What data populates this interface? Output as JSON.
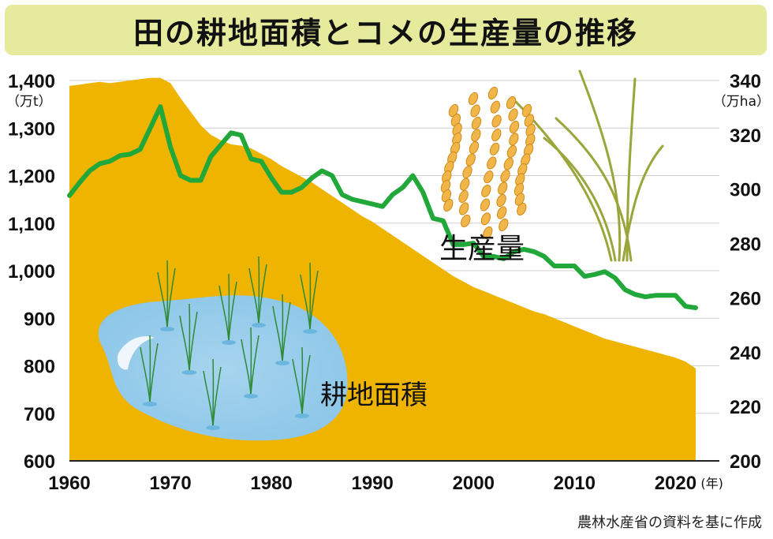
{
  "title": "田の耕地面積とコメの生産量の推移",
  "source": "農林水産省の資料を基に作成",
  "chart_data": {
    "type": "area+line",
    "title": "田の耕地面積とコメの生産量の推移",
    "left_axis": {
      "unit": "（万t）",
      "range": [
        600,
        1400
      ],
      "ticks": [
        "600",
        "700",
        "800",
        "900",
        "1,000",
        "1,100",
        "1,200",
        "1,300",
        "1,400"
      ],
      "tick_values": [
        600,
        700,
        800,
        900,
        1000,
        1100,
        1200,
        1300,
        1400
      ]
    },
    "right_axis": {
      "unit": "（万ha）",
      "range": [
        200,
        340
      ],
      "ticks": [
        "200",
        "220",
        "240",
        "260",
        "280",
        "300",
        "320",
        "340"
      ],
      "tick_values": [
        200,
        220,
        240,
        260,
        280,
        300,
        320,
        340
      ]
    },
    "x_axis": {
      "range": [
        1960,
        2022
      ],
      "ticks": [
        "1960",
        "1970",
        "1980",
        "1990",
        "2000",
        "2010",
        "2020"
      ],
      "tick_values": [
        1960,
        1970,
        1980,
        1990,
        2000,
        2010,
        2020
      ],
      "unit": "(年)"
    },
    "series": [
      {
        "name": "耕地面積",
        "axis": "right",
        "type": "area",
        "color": "#eeb400",
        "x": [
          1960,
          1961,
          1962,
          1963,
          1964,
          1965,
          1966,
          1967,
          1968,
          1969,
          1970,
          1971,
          1972,
          1973,
          1974,
          1975,
          1976,
          1977,
          1978,
          1979,
          1980,
          1981,
          1982,
          1983,
          1984,
          1985,
          1986,
          1987,
          1988,
          1989,
          1990,
          1991,
          1992,
          1993,
          1994,
          1995,
          1996,
          1997,
          1998,
          1999,
          2000,
          2001,
          2002,
          2003,
          2004,
          2005,
          2006,
          2007,
          2008,
          2009,
          2010,
          2011,
          2012,
          2013,
          2014,
          2015,
          2016,
          2017,
          2018,
          2019,
          2020,
          2021,
          2022
        ],
        "values": [
          338,
          338.5,
          339,
          339.5,
          339,
          339.5,
          340,
          340.5,
          341,
          341,
          339,
          333.5,
          328.5,
          323.5,
          320,
          318,
          316.5,
          316,
          315,
          313,
          311,
          308.5,
          306.5,
          304.5,
          302.5,
          300,
          297.5,
          295,
          292.5,
          290,
          288,
          285.5,
          283,
          280.5,
          278,
          275.5,
          273,
          270.5,
          268,
          266,
          264,
          262.5,
          261,
          259.5,
          258,
          256.5,
          255,
          254,
          252.5,
          251,
          249.5,
          248,
          246.5,
          245,
          244,
          243,
          242,
          241,
          240,
          239,
          238,
          236.5,
          234
        ]
      },
      {
        "name": "生産量",
        "axis": "left",
        "type": "line",
        "color": "#22a83a",
        "x": [
          1960,
          1961,
          1962,
          1963,
          1964,
          1965,
          1966,
          1967,
          1968,
          1969,
          1970,
          1971,
          1972,
          1973,
          1974,
          1975,
          1976,
          1977,
          1978,
          1979,
          1980,
          1981,
          1982,
          1983,
          1984,
          1985,
          1986,
          1987,
          1988,
          1989,
          1990,
          1991,
          1992,
          1993,
          1994,
          1995,
          1996,
          1997,
          1998,
          1999,
          2000,
          2001,
          2002,
          2003,
          2004,
          2005,
          2006,
          2007,
          2008,
          2009,
          2010,
          2011,
          2012,
          2013,
          2014,
          2015,
          2016,
          2017,
          2018,
          2019,
          2020,
          2021,
          2022
        ],
        "values": [
          1158,
          1185,
          1210,
          1225,
          1230,
          1242,
          1245,
          1255,
          1300,
          1345,
          1260,
          1200,
          1190,
          1190,
          1240,
          1265,
          1290,
          1285,
          1235,
          1230,
          1195,
          1165,
          1165,
          1175,
          1195,
          1210,
          1200,
          1160,
          1150,
          1145,
          1140,
          1135,
          1160,
          1175,
          1200,
          1165,
          1110,
          1105,
          1055,
          1055,
          1058,
          1030,
          1030,
          1025,
          1040,
          1045,
          1040,
          1030,
          1010,
          1010,
          1010,
          988,
          992,
          998,
          985,
          960,
          950,
          945,
          948,
          948,
          948,
          925,
          922
        ]
      }
    ],
    "annotations": [
      "生産量",
      "耕地面積"
    ]
  }
}
